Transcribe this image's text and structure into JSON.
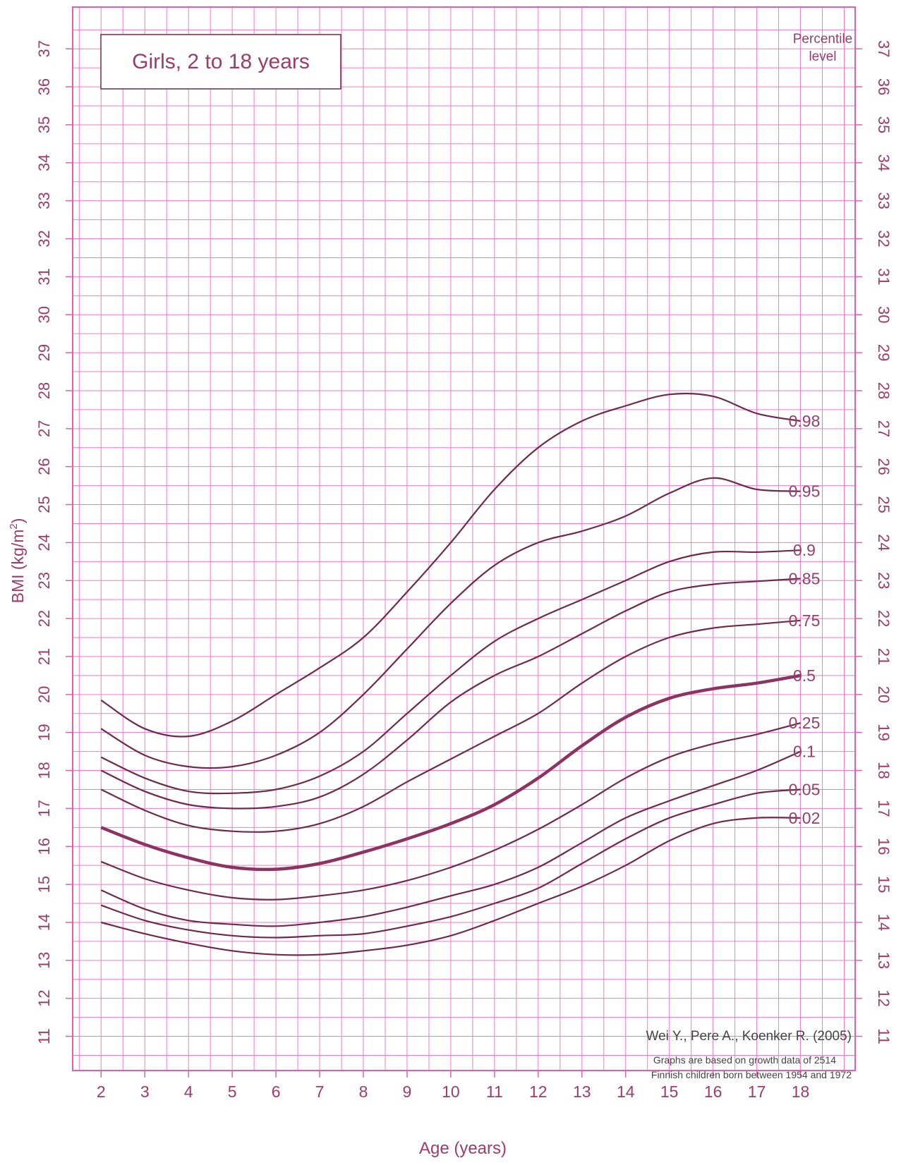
{
  "colors": {
    "grid": "#f07ac8",
    "frame": "#e060b0",
    "curve": "#6e2a4c",
    "median": "#8c3461",
    "text": "#9a3d6c",
    "credit": "#444444"
  },
  "chart_data": {
    "type": "line",
    "title": "Girls, 2 to 18 years",
    "xlabel": "Age (years)",
    "ylabel": "BMI (kg/m",
    "ylabel_sup": "2",
    "ylabel_close": ")",
    "xlim": [
      1.35,
      19.25
    ],
    "ylim": [
      10.1,
      38.1
    ],
    "x_ticks": [
      "2",
      "3",
      "4",
      "5",
      "6",
      "7",
      "8",
      "9",
      "10",
      "11",
      "12",
      "13",
      "14",
      "15",
      "16",
      "17",
      "18"
    ],
    "y_ticks": [
      "11",
      "12",
      "13",
      "14",
      "15",
      "16",
      "17",
      "18",
      "19",
      "20",
      "21",
      "22",
      "23",
      "24",
      "25",
      "26",
      "27",
      "28",
      "29",
      "30",
      "31",
      "32",
      "33",
      "34",
      "35",
      "36",
      "37"
    ],
    "grid": true,
    "legend_title": [
      "Percentile",
      "level"
    ],
    "credit": "Wei Y., Pere A., Koenker R. (2005)",
    "note": [
      "Graphs are based on growth data of 2514",
      "Finnish children born between 1954 and 1972"
    ],
    "x": [
      2,
      3,
      4,
      5,
      6,
      7,
      8,
      9,
      10,
      11,
      12,
      13,
      14,
      15,
      16,
      17,
      18
    ],
    "series": [
      {
        "name": "0.98",
        "values": [
          19.85,
          19.1,
          18.9,
          19.3,
          20.0,
          20.7,
          21.5,
          22.7,
          24.0,
          25.4,
          26.5,
          27.2,
          27.6,
          27.9,
          27.85,
          27.4,
          27.2
        ]
      },
      {
        "name": "0.95",
        "values": [
          19.1,
          18.4,
          18.1,
          18.1,
          18.4,
          19.0,
          20.0,
          21.2,
          22.4,
          23.4,
          24.0,
          24.3,
          24.7,
          25.3,
          25.7,
          25.4,
          25.35
        ]
      },
      {
        "name": "0.9",
        "values": [
          18.35,
          17.8,
          17.45,
          17.4,
          17.5,
          17.85,
          18.5,
          19.5,
          20.5,
          21.4,
          22.0,
          22.5,
          23.0,
          23.5,
          23.75,
          23.75,
          23.8
        ]
      },
      {
        "name": "0.85",
        "values": [
          18.0,
          17.45,
          17.1,
          17.0,
          17.05,
          17.3,
          17.9,
          18.8,
          19.8,
          20.5,
          21.0,
          21.6,
          22.2,
          22.7,
          22.9,
          22.98,
          23.05
        ]
      },
      {
        "name": "0.75",
        "values": [
          17.5,
          16.95,
          16.55,
          16.4,
          16.4,
          16.6,
          17.05,
          17.7,
          18.3,
          18.9,
          19.5,
          20.3,
          21.0,
          21.5,
          21.75,
          21.85,
          21.95
        ]
      },
      {
        "name": "0.5",
        "values": [
          16.5,
          16.05,
          15.7,
          15.45,
          15.4,
          15.55,
          15.85,
          16.2,
          16.6,
          17.1,
          17.8,
          18.65,
          19.4,
          19.9,
          20.15,
          20.3,
          20.5
        ]
      },
      {
        "name": "0.25",
        "values": [
          15.6,
          15.15,
          14.85,
          14.65,
          14.6,
          14.7,
          14.85,
          15.1,
          15.45,
          15.9,
          16.45,
          17.1,
          17.8,
          18.35,
          18.7,
          18.95,
          19.25
        ]
      },
      {
        "name": "0.1",
        "values": [
          14.85,
          14.35,
          14.05,
          13.95,
          13.9,
          14.0,
          14.15,
          14.4,
          14.7,
          15.0,
          15.45,
          16.1,
          16.75,
          17.2,
          17.6,
          18.0,
          18.5
        ]
      },
      {
        "name": "0.05",
        "values": [
          14.45,
          14.05,
          13.8,
          13.65,
          13.6,
          13.65,
          13.7,
          13.9,
          14.15,
          14.5,
          14.9,
          15.55,
          16.2,
          16.75,
          17.1,
          17.4,
          17.5
        ]
      },
      {
        "name": "0.02",
        "values": [
          14.0,
          13.7,
          13.45,
          13.25,
          13.15,
          13.15,
          13.25,
          13.4,
          13.65,
          14.05,
          14.5,
          14.95,
          15.5,
          16.15,
          16.6,
          16.75,
          16.75
        ]
      }
    ]
  }
}
